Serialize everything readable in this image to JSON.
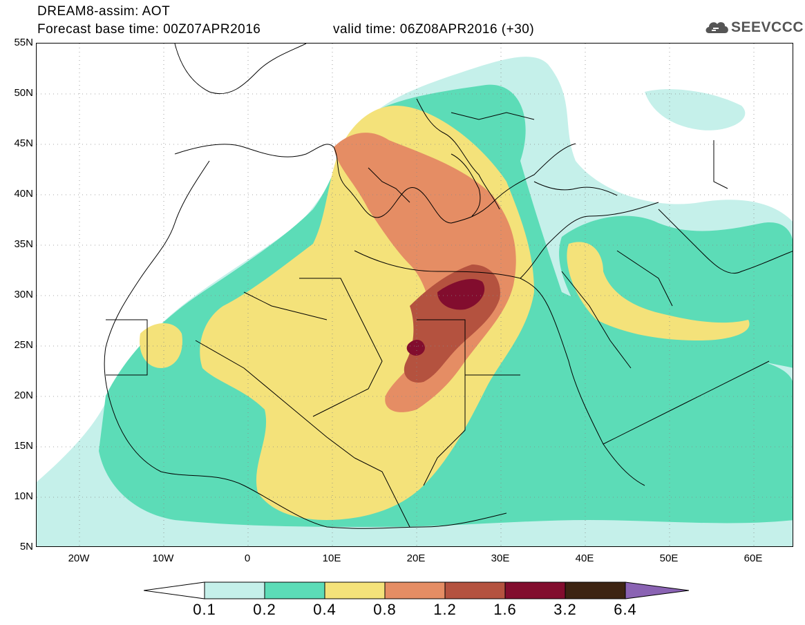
{
  "header": {
    "title_line1": "DREAM8-assim: AOT",
    "title_line2": "Forecast base time: 00Z07APR2016",
    "title_line2b": "valid time: 06Z08APR2016 (+30)",
    "logo_text": "SEEVCCC",
    "logo_icon": "cloud-icon"
  },
  "map": {
    "lat_labels": [
      "55N",
      "50N",
      "45N",
      "40N",
      "35N",
      "30N",
      "25N",
      "20N",
      "15N",
      "10N",
      "5N"
    ],
    "lon_labels": [
      "20W",
      "10W",
      "0",
      "10E",
      "20E",
      "30E",
      "40E",
      "50E",
      "60E"
    ]
  },
  "legend": {
    "labels": [
      "0.1",
      "0.2",
      "0.4",
      "0.8",
      "1.2",
      "1.6",
      "3.2",
      "6.4"
    ],
    "colors": [
      "#ffffff",
      "#c5f0ea",
      "#5cdcb7",
      "#f4e27a",
      "#e58d64",
      "#b4523f",
      "#820d2e",
      "#3d2412",
      "#8a63b3"
    ]
  }
}
